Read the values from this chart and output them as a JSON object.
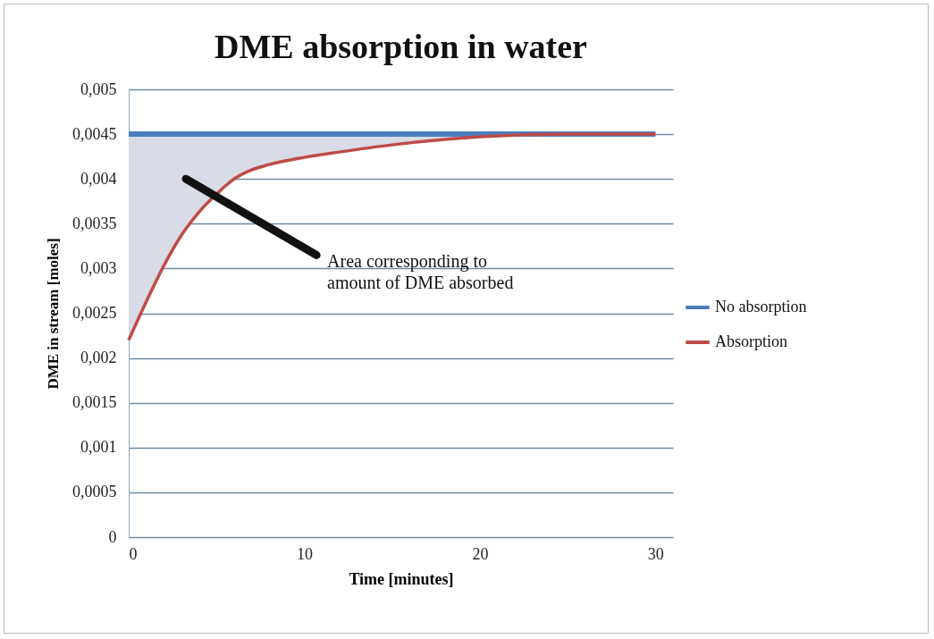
{
  "chart_data": {
    "type": "line",
    "title": "DME absorption in water",
    "xlabel": "Time [minutes]",
    "ylabel": "DME in stream [moles]",
    "x": [
      0,
      1,
      2,
      3,
      4,
      5,
      6,
      7,
      8,
      10,
      12,
      15,
      18,
      20,
      25,
      30
    ],
    "series": [
      {
        "name": "No absorption",
        "color": "#4a7ebb",
        "values": [
          0.0045,
          0.0045,
          0.0045,
          0.0045,
          0.0045,
          0.0045,
          0.0045,
          0.0045,
          0.0045,
          0.0045,
          0.0045,
          0.0045,
          0.0045,
          0.0045,
          0.0045,
          0.0045
        ],
        "lower": [
          0.0022,
          0.00263,
          0.00303,
          0.00337,
          0.00363,
          0.00383,
          0.004,
          0.0041,
          0.00416,
          0.00424,
          0.0043,
          0.00438,
          0.00444,
          0.00447,
          0.0045,
          0.0045
        ],
        "upper": [
          0.0045,
          0.0045,
          0.0045,
          0.0045,
          0.0045,
          0.0045,
          0.0045,
          0.0045,
          0.0045,
          0.0045,
          0.0045,
          0.0045,
          0.0045,
          0.0045,
          0.0045,
          0.0045
        ]
      },
      {
        "name": "Absorption",
        "color": "#be4b48",
        "values": [
          0.0022,
          0.00263,
          0.00303,
          0.00337,
          0.00363,
          0.00383,
          0.004,
          0.0041,
          0.00416,
          0.00424,
          0.0043,
          0.00438,
          0.00444,
          0.00447,
          0.0045,
          0.0045
        ]
      }
    ],
    "annotations": [
      "Area corresponding to\namount of DME absorbed"
    ],
    "xlim": [
      0,
      31
    ],
    "xticks": [
      0,
      10,
      20,
      30
    ],
    "ylim": [
      0,
      0.005
    ],
    "yticks": [
      {
        "value": 0,
        "label": "0"
      },
      {
        "value": 0.0005,
        "label": "0,0005"
      },
      {
        "value": 0.001,
        "label": "0,001"
      },
      {
        "value": 0.0015,
        "label": "0,0015"
      },
      {
        "value": 0.002,
        "label": "0,002"
      },
      {
        "value": 0.0025,
        "label": "0,0025"
      },
      {
        "value": 0.003,
        "label": "0,003"
      },
      {
        "value": 0.0035,
        "label": "0,0035"
      },
      {
        "value": 0.004,
        "label": "0,004"
      },
      {
        "value": 0.0045,
        "label": "0,0045"
      },
      {
        "value": 0.005,
        "label": "0,005"
      }
    ],
    "grid": "y",
    "legend": "right",
    "line_style": "solid",
    "marker": "none"
  }
}
